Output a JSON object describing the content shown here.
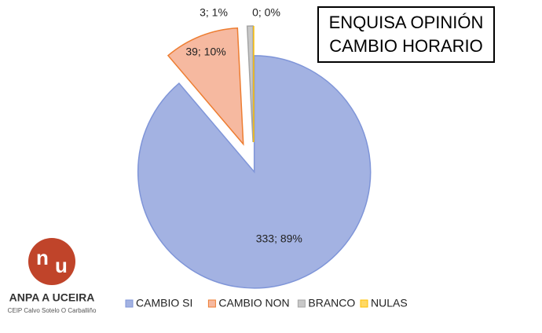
{
  "chart_data": {
    "type": "pie",
    "title": "ENQUISA OPINIÓN CAMBIO HORARIO",
    "categories": [
      "CAMBIO SI",
      "CAMBIO NON",
      "BRANCO",
      "NULAS"
    ],
    "values": [
      333,
      39,
      3,
      0
    ],
    "value_labels": [
      "333; 89%",
      "39; 10%",
      "3; 1%",
      "0; 0%"
    ],
    "colors": [
      "#a3b2e2",
      "#f6b9a0",
      "#c8c8c8",
      "#ffd966"
    ],
    "edge_colors": [
      "#7f95d8",
      "#ed7d31",
      "#a5a5a5",
      "#ffc000"
    ],
    "legend": "bottom",
    "logo": {
      "title": "ANPA A UCEIRA",
      "subtitle": "CEIP Calvo Sotelo  O Carballiño"
    }
  }
}
